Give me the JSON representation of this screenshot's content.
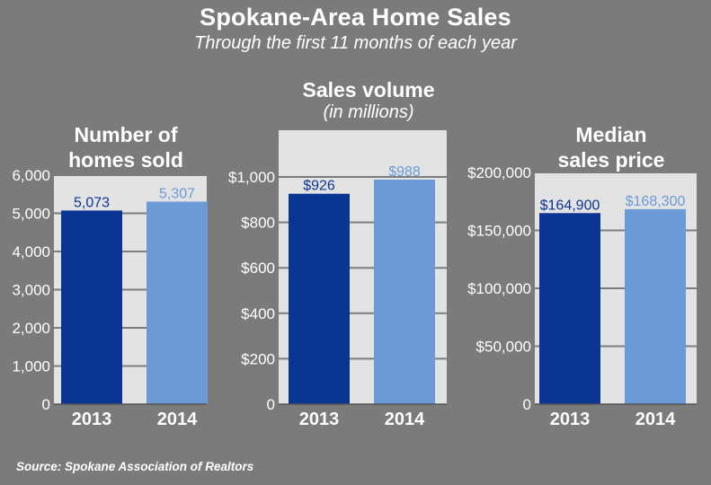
{
  "header": {
    "title": "Spokane-Area Home Sales",
    "subtitle": "Through the first 11 months of each year"
  },
  "footer": {
    "source": "Source: Spokane Association of Realtors"
  },
  "colors": {
    "bar_2013": "#0b3593",
    "bar_2014": "#6b9ad6",
    "panel_bg": "#e3e3e3",
    "gridline": "#7d7d7d"
  },
  "chart_data": [
    {
      "type": "bar",
      "title_lines": [
        "Number of",
        "homes sold"
      ],
      "categories": [
        "2013",
        "2014"
      ],
      "values": [
        5073,
        5307
      ],
      "value_labels": [
        "5,073",
        "5,307"
      ],
      "ylim": [
        0,
        6000
      ],
      "yticks": [
        0,
        1000,
        2000,
        3000,
        4000,
        5000,
        6000
      ],
      "ytick_labels": [
        "0",
        "1,000",
        "2,000",
        "3,000",
        "4,000",
        "5,000",
        "6,000"
      ],
      "grid": true
    },
    {
      "type": "bar",
      "title": "Sales volume",
      "subtitle": "(in millions)",
      "categories": [
        "2013",
        "2014"
      ],
      "values": [
        926,
        988
      ],
      "value_labels": [
        "$926",
        "$988"
      ],
      "ylim": [
        0,
        1000
      ],
      "yticks": [
        0,
        200,
        400,
        600,
        800,
        1000
      ],
      "ytick_labels": [
        "0",
        "$200",
        "$400",
        "$600",
        "$800",
        "$1,000"
      ],
      "grid": true
    },
    {
      "type": "bar",
      "title_lines": [
        "Median",
        "sales price"
      ],
      "categories": [
        "2013",
        "2014"
      ],
      "values": [
        164900,
        168300
      ],
      "value_labels": [
        "$164,900",
        "$168,300"
      ],
      "ylim": [
        0,
        200000
      ],
      "yticks": [
        0,
        50000,
        100000,
        150000,
        200000
      ],
      "ytick_labels": [
        "0",
        "$50,000",
        "$100,000",
        "$150,000",
        "$200,000"
      ],
      "grid": true
    }
  ]
}
